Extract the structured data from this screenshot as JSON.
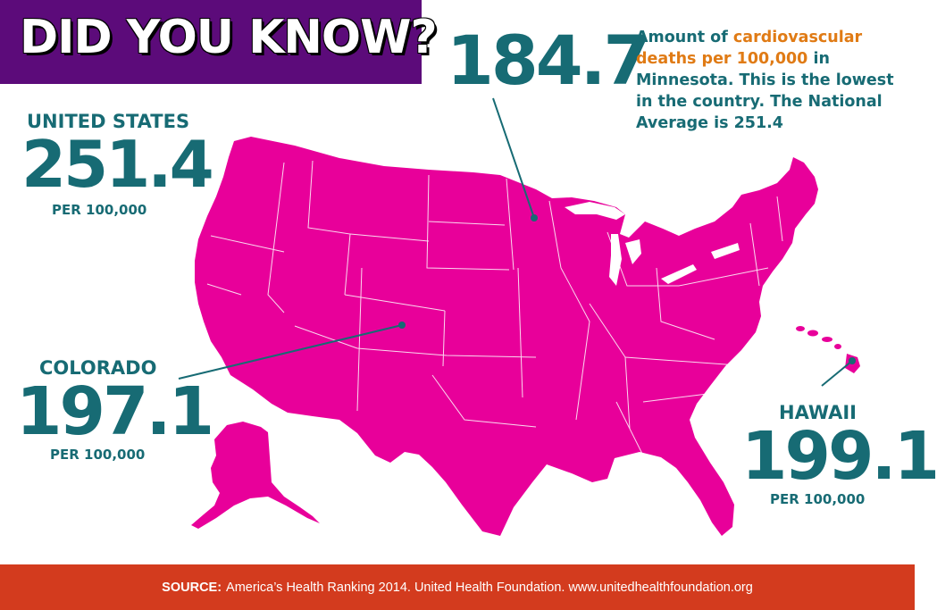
{
  "header": {
    "title": "DID YOU KNOW?"
  },
  "minnesota": {
    "value": "184.7",
    "text_pre": "Amount of ",
    "text_highlight": "cardiovascular deaths per 100,000",
    "text_post": " in Minnesota. This is the lowest in the country. The National Average is 251.4"
  },
  "united_states": {
    "label": "UNITED STATES",
    "value": "251.4",
    "per": "PER 100,000"
  },
  "colorado": {
    "label": "COLORADO",
    "value": "197.1",
    "per": "PER 100,000"
  },
  "hawaii": {
    "label": "HAWAII",
    "value": "199.1",
    "per": "PER 100,000"
  },
  "footer": {
    "source_label": "SOURCE:",
    "source_text": "America’s Health Ranking 2014. United Health Foundation. www.unitedhealthfoundation.org"
  },
  "colors": {
    "banner": "#5c0b7a",
    "map_fill": "#e8009a",
    "accent_teal": "#176b74",
    "highlight_orange": "#e07b15",
    "footer": "#d33b1e"
  }
}
